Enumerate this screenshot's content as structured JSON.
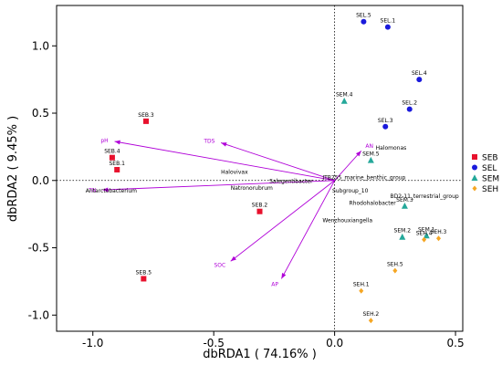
{
  "chart_data": {
    "type": "scatter",
    "xlabel": "dbRDA1 ( 74.16% )",
    "ylabel": "dbRDA2 ( 9.45% )",
    "xlim": [
      -1.15,
      0.53
    ],
    "ylim": [
      -1.12,
      1.3
    ],
    "xticks": [
      "-1.0",
      "-0.5",
      "0.0",
      "0.5"
    ],
    "xtick_values": [
      -1.0,
      -0.5,
      0.0,
      0.5
    ],
    "yticks": [
      "-1.0",
      "-0.5",
      "0.0",
      "0.5",
      "1.0"
    ],
    "ytick_values": [
      -1.0,
      -0.5,
      0.0,
      0.5,
      1.0
    ],
    "reference_lines": {
      "x": 0,
      "y": 0,
      "style": "dotted"
    },
    "legend_position": "right",
    "series": [
      {
        "name": "SEB",
        "color": "#e8112d",
        "marker": "square",
        "points": [
          {
            "label": "SEB.3",
            "x": -0.78,
            "y": 0.44
          },
          {
            "label": "SEB.4",
            "x": -0.92,
            "y": 0.17
          },
          {
            "label": "SEB.1",
            "x": -0.9,
            "y": 0.08
          },
          {
            "label": "SEB.2",
            "x": -0.31,
            "y": -0.23
          },
          {
            "label": "SEB.5",
            "x": -0.79,
            "y": -0.73
          }
        ]
      },
      {
        "name": "SEL",
        "color": "#1a1adc",
        "marker": "circle",
        "points": [
          {
            "label": "SEL.5",
            "x": 0.12,
            "y": 1.18
          },
          {
            "label": "SEL.1",
            "x": 0.22,
            "y": 1.14
          },
          {
            "label": "SEL.4",
            "x": 0.35,
            "y": 0.75
          },
          {
            "label": "SEL.2",
            "x": 0.31,
            "y": 0.53
          },
          {
            "label": "SEL.3",
            "x": 0.21,
            "y": 0.4
          }
        ]
      },
      {
        "name": "SEM",
        "color": "#24a89a",
        "marker": "triangle",
        "points": [
          {
            "label": "SEM.4",
            "x": 0.04,
            "y": 0.59
          },
          {
            "label": "SEM.5",
            "x": 0.15,
            "y": 0.15
          },
          {
            "label": "SEM.3",
            "x": 0.29,
            "y": -0.19
          },
          {
            "label": "SEM.1",
            "x": 0.38,
            "y": -0.41
          },
          {
            "label": "SEM.2",
            "x": 0.28,
            "y": -0.42
          }
        ]
      },
      {
        "name": "SEH",
        "color": "#f5a623",
        "marker": "diamond",
        "points": [
          {
            "label": "SEH.3",
            "x": 0.43,
            "y": -0.43
          },
          {
            "label": "SEH.4",
            "x": 0.37,
            "y": -0.44
          },
          {
            "label": "SEH.5",
            "x": 0.25,
            "y": -0.67
          },
          {
            "label": "SEH.1",
            "x": 0.11,
            "y": -0.82
          },
          {
            "label": "SEH.2",
            "x": 0.15,
            "y": -1.04
          }
        ]
      }
    ],
    "env_vectors": [
      {
        "name": "pH",
        "x": -0.91,
        "y": 0.29
      },
      {
        "name": "TDS",
        "x": -0.47,
        "y": 0.28
      },
      {
        "name": "AN",
        "x": 0.11,
        "y": 0.22
      },
      {
        "name": "TN",
        "x": -0.96,
        "y": -0.07
      },
      {
        "name": "SOC",
        "x": -0.43,
        "y": -0.6
      },
      {
        "name": "AP",
        "x": -0.22,
        "y": -0.73
      }
    ],
    "vector_origin": {
      "x": 0.0,
      "y": 0.0
    },
    "vector_color": "#b000d8",
    "taxa": [
      {
        "name": "Halomonas",
        "x": 0.17,
        "y": 0.23
      },
      {
        "name": "Halovivax",
        "x": -0.47,
        "y": 0.05
      },
      {
        "name": "Salegentibacter",
        "x": -0.27,
        "y": -0.02
      },
      {
        "name": "Natronorubrum",
        "x": -0.43,
        "y": -0.07
      },
      {
        "name": "Antarctobacterium",
        "x": -1.03,
        "y": -0.09
      },
      {
        "name": "JTB255_marine_benthic_group",
        "x": -0.05,
        "y": 0.01
      },
      {
        "name": "Subgroup_10",
        "x": -0.01,
        "y": -0.09
      },
      {
        "name": "Rhodohalobacter",
        "x": 0.06,
        "y": -0.18
      },
      {
        "name": "BD2-11_terrestrial_group",
        "x": 0.23,
        "y": -0.13
      },
      {
        "name": "Wenzhouxiangella",
        "x": -0.05,
        "y": -0.31
      }
    ]
  }
}
